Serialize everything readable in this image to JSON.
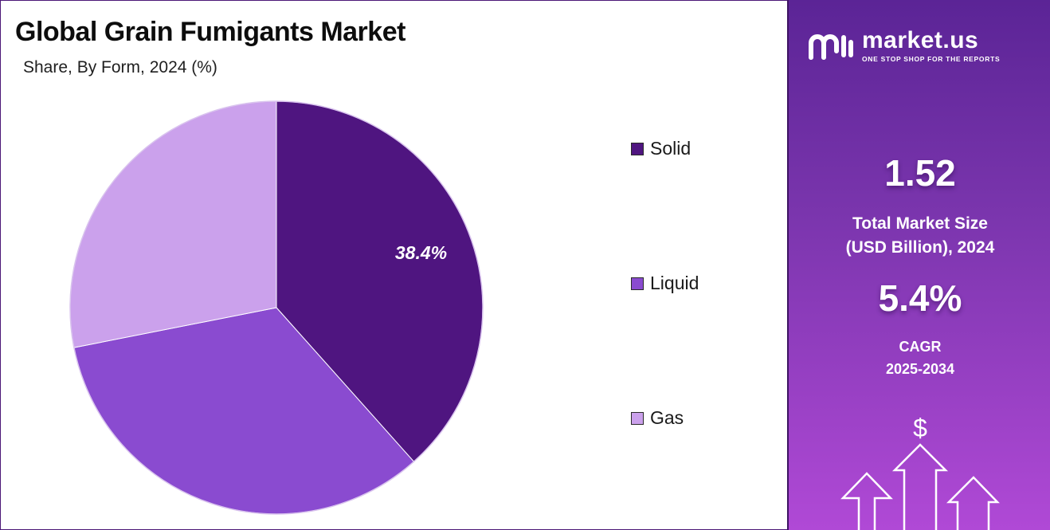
{
  "header": {
    "title": "Global Grain Fumigants Market",
    "subtitle": "Share, By Form, 2024 (%)"
  },
  "chart_data": {
    "type": "pie",
    "title": "Global Grain Fumigants Market",
    "subtitle": "Share, By Form, 2024 (%)",
    "categories": [
      "Solid",
      "Liquid",
      "Gas"
    ],
    "values": [
      38.4,
      33.5,
      28.1
    ],
    "colors": [
      "#4f1580",
      "#8a4bd0",
      "#cba1ec"
    ],
    "data_labels": [
      "38.4%",
      "",
      ""
    ],
    "legend_position": "right",
    "start_angle": "12 o'clock, clockwise"
  },
  "sidebar": {
    "brand": {
      "name": "market.us",
      "tagline": "ONE STOP SHOP FOR THE REPORTS",
      "logo_icon": "market-us-logo"
    },
    "market_size": {
      "value": "1.52",
      "label_line1": "Total Market Size",
      "label_line2": "(USD Billion), 2024"
    },
    "cagr": {
      "value": "5.4%",
      "label_line1": "CAGR",
      "label_line2": "2025-2034"
    },
    "growth_icon": {
      "symbol": "$",
      "name": "growth-arrows-icon"
    }
  }
}
